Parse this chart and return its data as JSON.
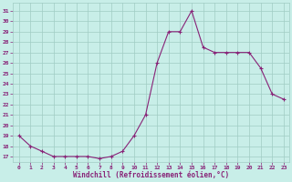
{
  "x": [
    0,
    1,
    2,
    3,
    4,
    5,
    6,
    7,
    8,
    9,
    10,
    11,
    12,
    13,
    14,
    15,
    16,
    17,
    18,
    19,
    20,
    21,
    22,
    23
  ],
  "y": [
    19,
    18,
    17.5,
    17,
    17,
    17,
    17,
    16.8,
    17,
    17.5,
    19,
    21,
    26,
    29,
    29,
    31,
    27.5,
    27,
    27,
    27,
    27,
    25.5,
    23,
    22.5
  ],
  "line_color": "#882277",
  "marker": "+",
  "bg_color": "#c8eee8",
  "grid_color": "#a0ccc4",
  "xlabel": "Windchill (Refroidissement éolien,°C)",
  "ylabel_ticks": [
    17,
    18,
    19,
    20,
    21,
    22,
    23,
    24,
    25,
    26,
    27,
    28,
    29,
    30,
    31
  ],
  "ylim": [
    16.5,
    31.8
  ],
  "xlim": [
    -0.5,
    23.5
  ],
  "tick_color": "#882277",
  "label_color": "#882277",
  "figsize": [
    3.2,
    2.0
  ],
  "dpi": 100
}
